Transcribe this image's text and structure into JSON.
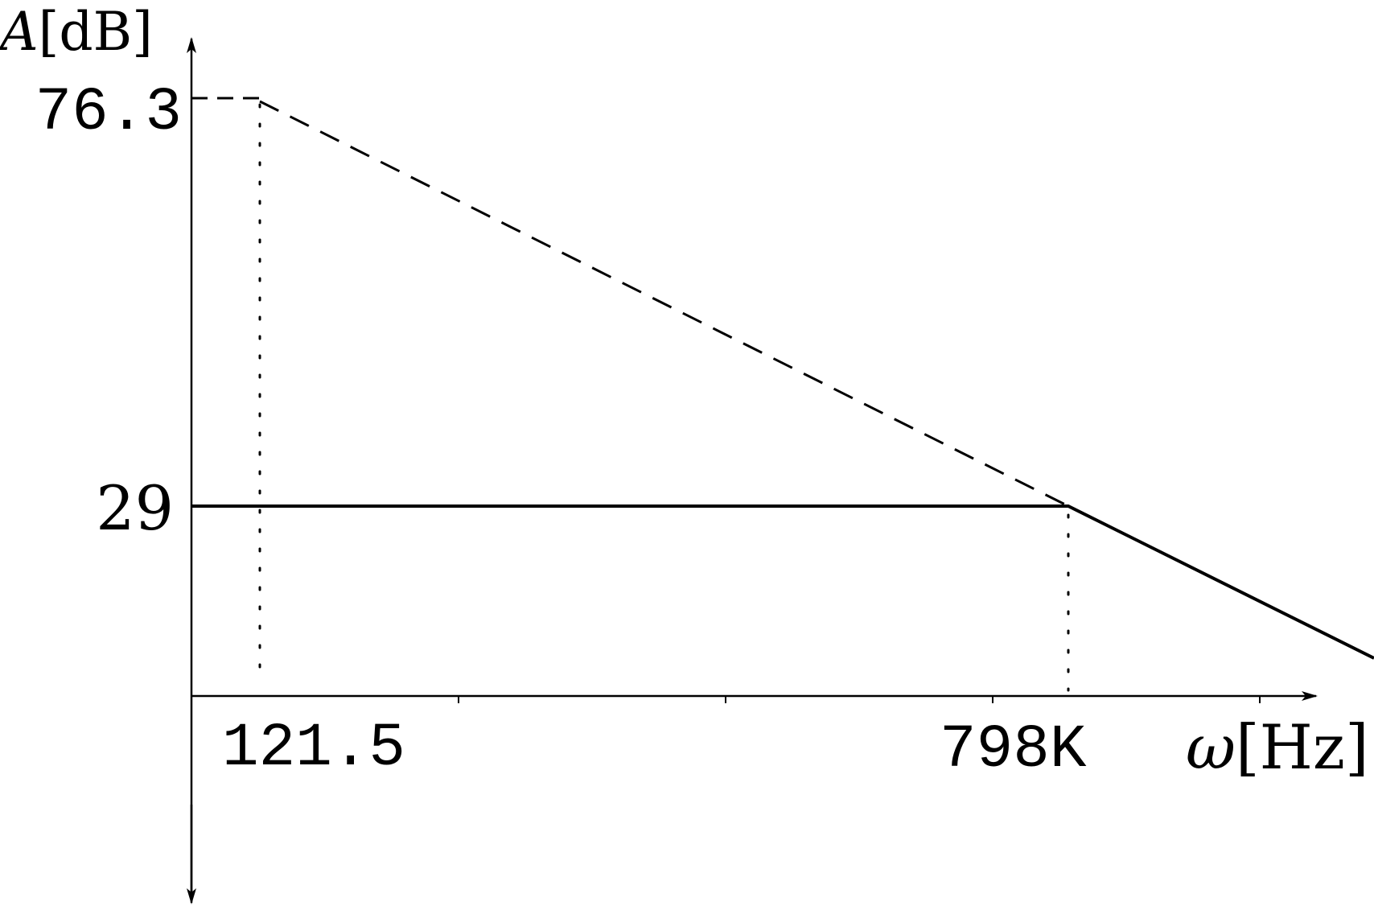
{
  "chart_data": {
    "type": "line",
    "title": "",
    "axes": {
      "y_label_symbol": "A",
      "y_label_unit": "[dB]",
      "x_label_symbol": "ω",
      "x_label_unit": "[Hz]",
      "x_scale": "log",
      "x_minor_ticks": 4
    },
    "x_tick_labels": [
      "121.5",
      "798K"
    ],
    "y_tick_labels": [
      "76.3",
      "29"
    ],
    "x_values": [
      121.5,
      798000
    ],
    "y_values": [
      76.3,
      29
    ],
    "series": [
      {
        "style": "solid",
        "points": [
          {
            "x": "start",
            "y": 29
          },
          {
            "x": 798000,
            "y": 29
          },
          {
            "x": "end",
            "y": "decreasing"
          }
        ]
      },
      {
        "style": "dashed",
        "points": [
          {
            "x": "axis",
            "y": 76.3
          },
          {
            "x": 121.5,
            "y": 76.3
          },
          {
            "x": 798000,
            "y": 29
          }
        ]
      }
    ],
    "guides": [
      {
        "style": "dotted",
        "x": 121.5
      },
      {
        "style": "dotted",
        "x": 798000
      }
    ],
    "grid": false,
    "legend": "none"
  }
}
